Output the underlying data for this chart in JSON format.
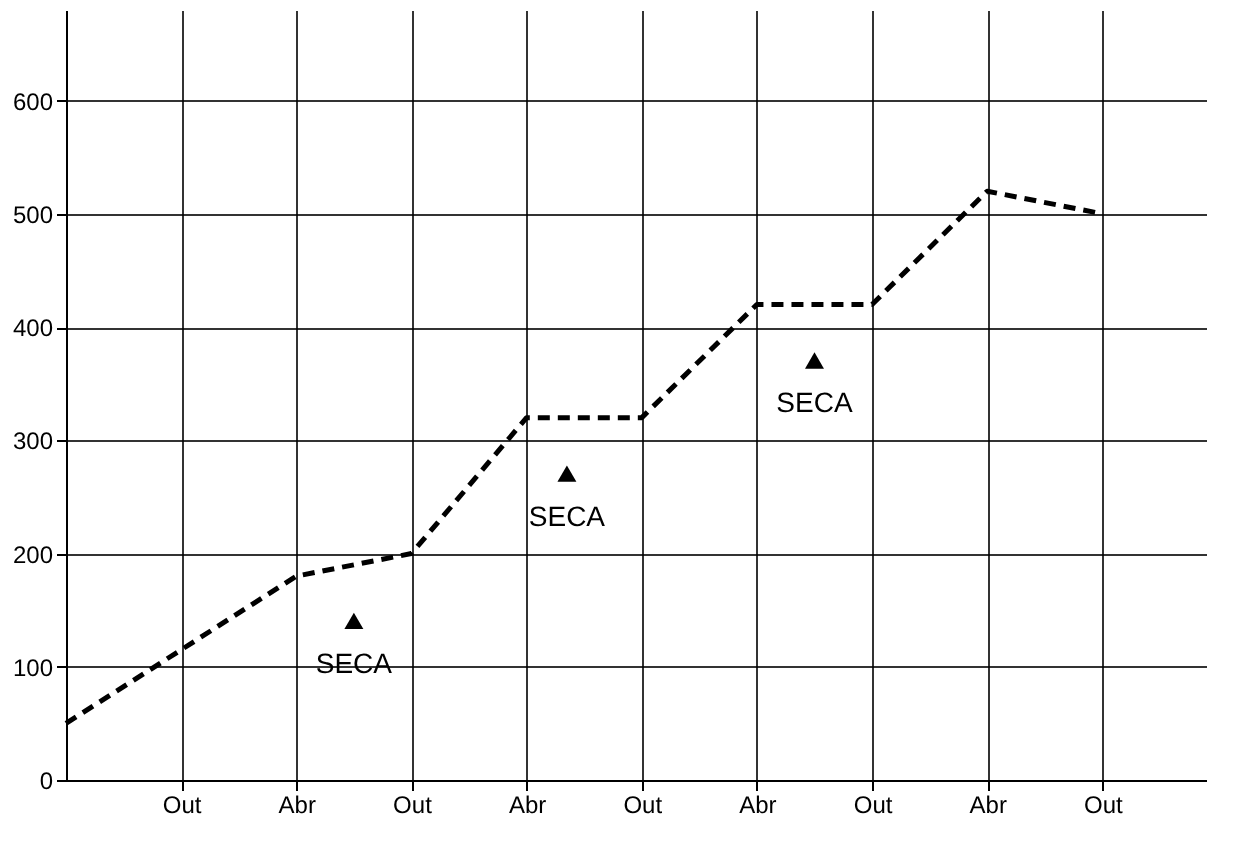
{
  "chart_data": {
    "type": "line",
    "categories": [
      null,
      "Out",
      "Abr",
      "Out",
      "Abr",
      "Out",
      "Abr",
      "Out",
      "Abr",
      "Out"
    ],
    "series": [
      {
        "color": "#000000",
        "values": [
          50,
          115,
          180,
          200,
          320,
          320,
          420,
          420,
          520,
          500
        ]
      }
    ],
    "line_style": "dashed",
    "marker": "none",
    "grid": true,
    "legend": false,
    "ylim": [
      0,
      680
    ],
    "yticks": [
      0,
      100,
      200,
      300,
      400,
      500,
      600
    ],
    "annotations": [
      "SECA",
      "SECA",
      "SECA"
    ]
  }
}
